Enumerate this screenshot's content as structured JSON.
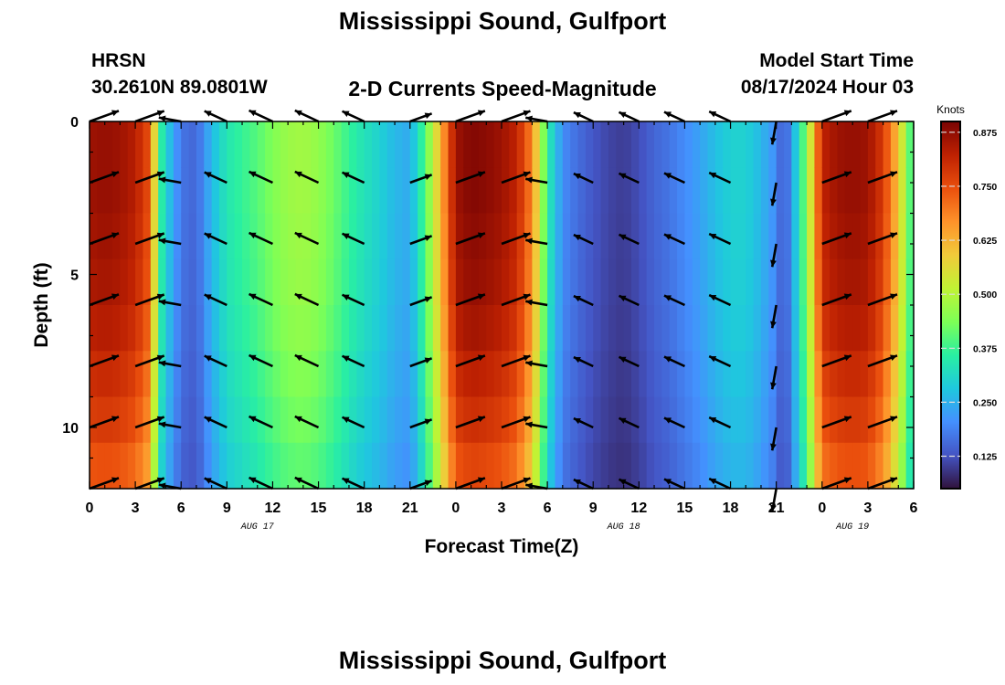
{
  "header": {
    "title": "Mississippi Sound, Gulfport",
    "station_name": "HRSN",
    "station_coords": "30.2610N  89.0801W",
    "product": "2-D Currents Speed-Magnitude",
    "model_start_label": "Model Start Time",
    "model_start_value": "08/17/2024 Hour 03",
    "repeat_title": "Mississippi Sound, Gulfport"
  },
  "chart_data": {
    "type": "heatmap",
    "title": "2-D Currents Speed-Magnitude",
    "xlabel": "Forecast Time(Z)",
    "ylabel": "Depth (ft)",
    "x_tick_labels": [
      "0",
      "3",
      "6",
      "9",
      "12",
      "15",
      "18",
      "21",
      "0",
      "3",
      "6",
      "9",
      "12",
      "15",
      "18",
      "21",
      "0",
      "3",
      "6"
    ],
    "x_date_labels": [
      {
        "label": "AUG 17",
        "at_hours": 11
      },
      {
        "label": "AUG 18",
        "at_hours": 35
      },
      {
        "label": "AUG 19",
        "at_hours": 50
      }
    ],
    "xlim_hours": [
      0,
      54
    ],
    "y_tick_labels": [
      "0",
      "5",
      "10"
    ],
    "ylim_ft": [
      0,
      12
    ],
    "y_axis_inverted": true,
    "colorbar": {
      "title": "Knots",
      "ticks": [
        "0.125",
        "0.250",
        "0.375",
        "0.500",
        "0.625",
        "0.750",
        "0.875"
      ],
      "range": [
        0.05,
        0.9
      ],
      "colormap": [
        "#30123b",
        "#4454c4",
        "#4490fe",
        "#1fc8de",
        "#29efa2",
        "#7dff56",
        "#c1f334",
        "#f1ca3a",
        "#fe922a",
        "#ea4f0d",
        "#be2102",
        "#7a0403"
      ]
    },
    "speed_profile_hours": [
      0,
      1,
      2,
      3,
      4,
      4.5,
      5,
      6,
      7,
      8,
      9,
      10,
      11,
      12,
      13,
      14,
      15,
      16,
      17,
      18,
      19,
      20,
      21,
      22,
      23,
      24,
      25,
      26,
      27,
      28,
      29,
      30,
      31,
      32,
      33,
      34,
      35,
      36,
      37,
      38,
      39,
      40,
      41,
      42,
      43,
      44,
      45,
      45.5,
      46,
      47,
      48,
      49,
      50,
      51,
      52,
      53,
      54
    ],
    "speed_profile_knots": [
      0.86,
      0.87,
      0.86,
      0.83,
      0.74,
      0.4,
      0.3,
      0.17,
      0.15,
      0.26,
      0.34,
      0.37,
      0.4,
      0.44,
      0.47,
      0.48,
      0.46,
      0.42,
      0.37,
      0.33,
      0.3,
      0.26,
      0.24,
      0.4,
      0.62,
      0.86,
      0.89,
      0.88,
      0.86,
      0.82,
      0.68,
      0.36,
      0.2,
      0.16,
      0.13,
      0.11,
      0.1,
      0.12,
      0.15,
      0.17,
      0.2,
      0.23,
      0.27,
      0.3,
      0.3,
      0.26,
      0.2,
      0.12,
      0.22,
      0.45,
      0.82,
      0.86,
      0.87,
      0.86,
      0.78,
      0.6,
      0.34
    ],
    "depth_factor": [
      1.0,
      1.0,
      0.99,
      0.98,
      0.96,
      0.93,
      0.9,
      0.86
    ],
    "vector_times_hours": [
      0,
      3,
      6,
      9,
      12,
      15,
      18,
      21,
      24,
      27,
      30,
      33,
      36,
      39,
      42,
      45,
      48,
      51
    ],
    "vector_depths_ft": [
      0,
      2,
      4,
      6,
      8,
      10,
      12
    ],
    "vector_directions_deg": [
      null,
      null,
      -170,
      -155,
      -155,
      -155,
      -155,
      null,
      null,
      null,
      -170,
      -155,
      -155,
      -155,
      -155,
      100,
      null,
      null
    ],
    "vector_speeds_knots": [
      0.86,
      0.83,
      0.2,
      0.37,
      0.47,
      0.46,
      0.33,
      0.24,
      0.86,
      0.82,
      0.16,
      0.11,
      0.15,
      0.2,
      0.27,
      0.26,
      0.86,
      0.87
    ]
  },
  "colors": {
    "background": "#ffffff",
    "arrow": "#000000"
  }
}
